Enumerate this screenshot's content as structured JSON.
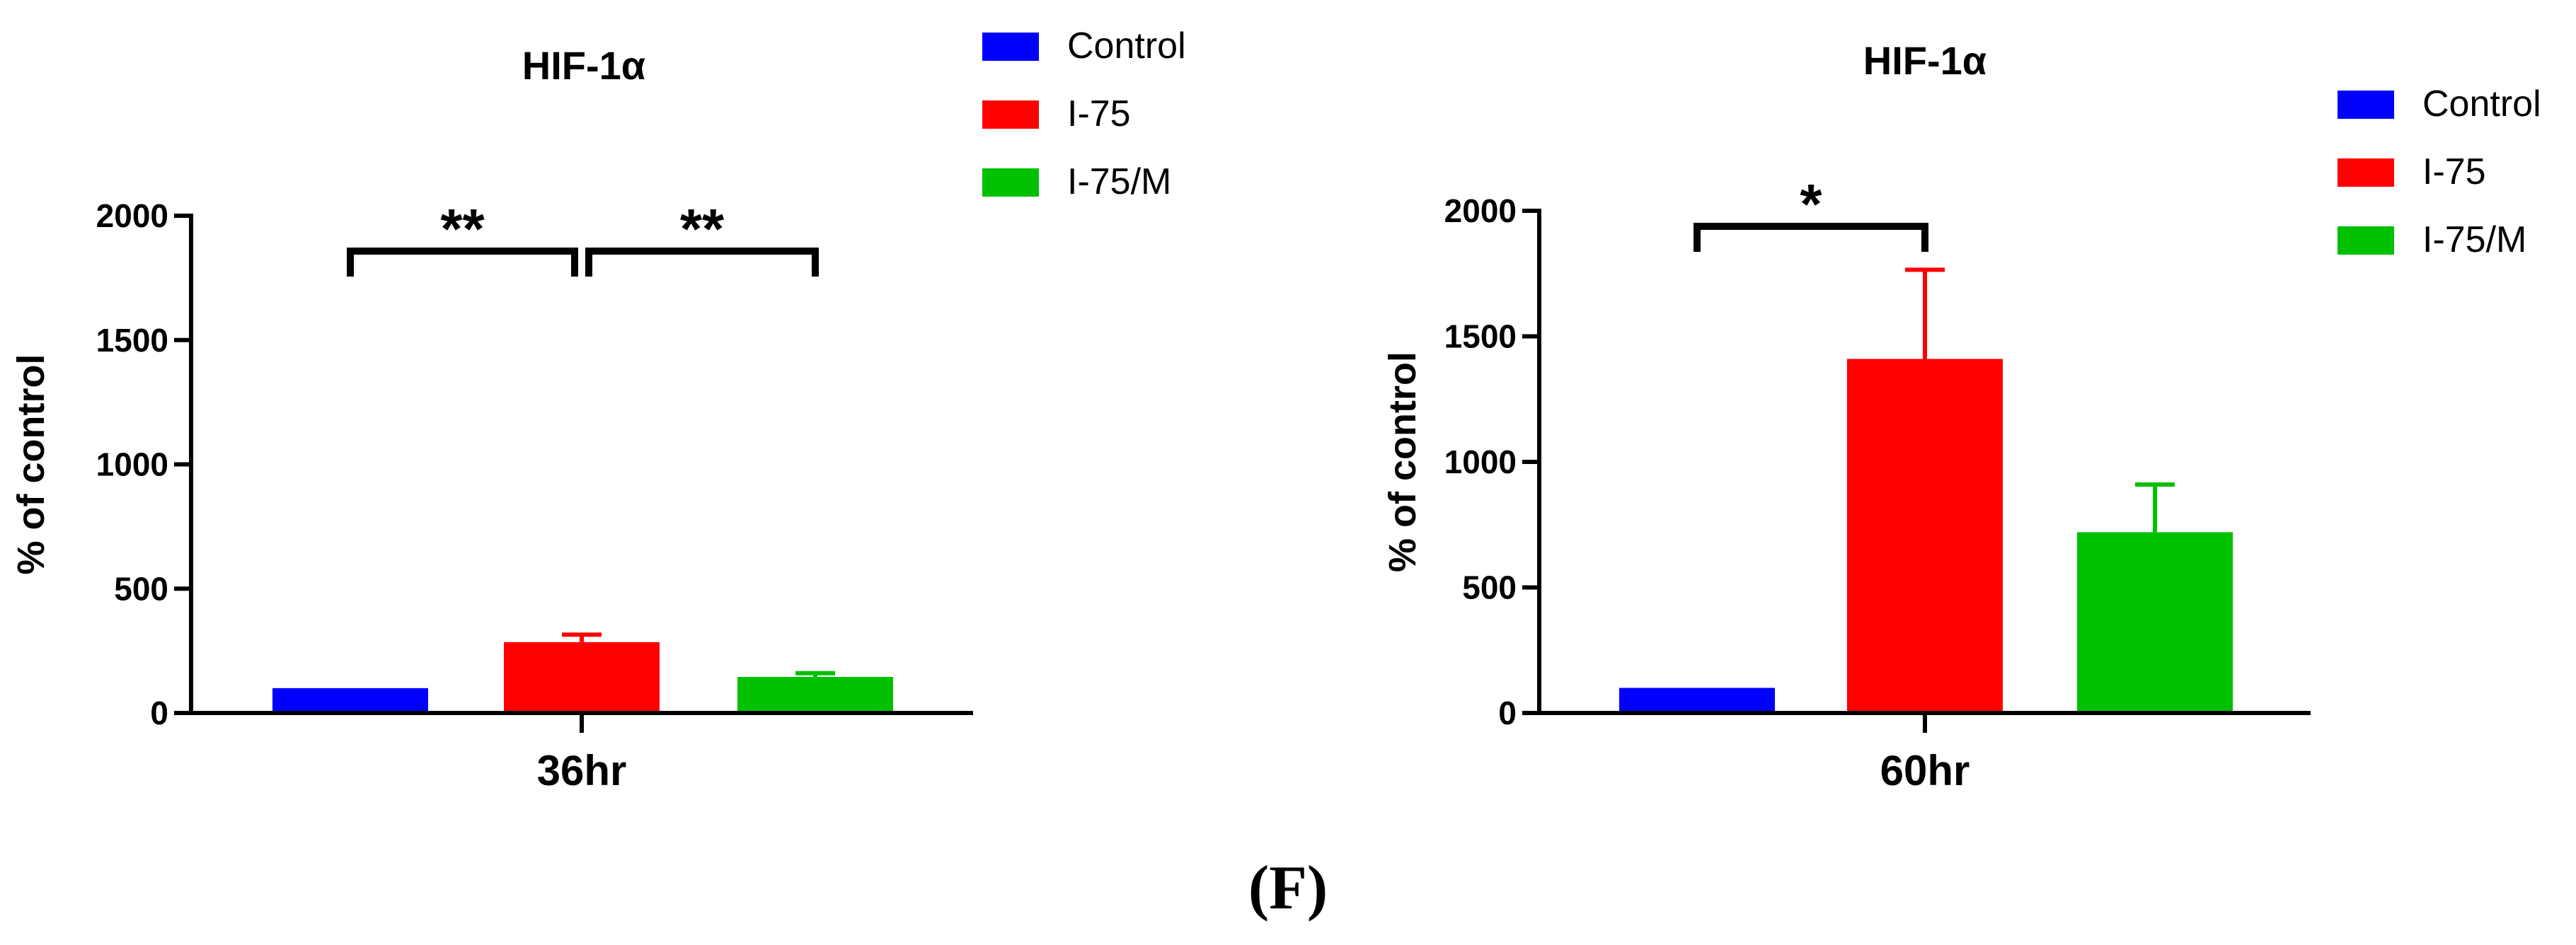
{
  "colors": {
    "Control": "#0000ff",
    "I-75": "#ff0000",
    "I-75/M": "#00c000"
  },
  "panel_label": "(F)",
  "chart_data": [
    {
      "type": "bar",
      "title": "HIF-1α",
      "ylabel": "% of control",
      "xlabel": "36hr",
      "categories": [
        "Control",
        "I-75",
        "I-75/M"
      ],
      "values": [
        100,
        285,
        145
      ],
      "errors": [
        0,
        30,
        15
      ],
      "ylim": [
        0,
        2000
      ],
      "yticks": [
        0,
        500,
        1000,
        1500,
        2000
      ],
      "legend": {
        "placement": "top-right",
        "entries": [
          "Control",
          "I-75",
          "I-75/M"
        ]
      },
      "significance": [
        {
          "from": 0,
          "to": 1,
          "label": "**"
        },
        {
          "from": 1,
          "to": 2,
          "label": "**"
        }
      ]
    },
    {
      "type": "bar",
      "title": "HIF-1α",
      "ylabel": "% of control",
      "xlabel": "60hr",
      "categories": [
        "Control",
        "I-75",
        "I-75/M"
      ],
      "values": [
        100,
        1410,
        720
      ],
      "errors": [
        0,
        355,
        190
      ],
      "ylim": [
        0,
        2000
      ],
      "yticks": [
        0,
        500,
        1000,
        1500,
        2000
      ],
      "legend": {
        "placement": "top-right",
        "entries": [
          "Control",
          "I-75",
          "I-75/M"
        ]
      },
      "significance": [
        {
          "from": 0,
          "to": 1,
          "label": "*"
        }
      ]
    }
  ]
}
